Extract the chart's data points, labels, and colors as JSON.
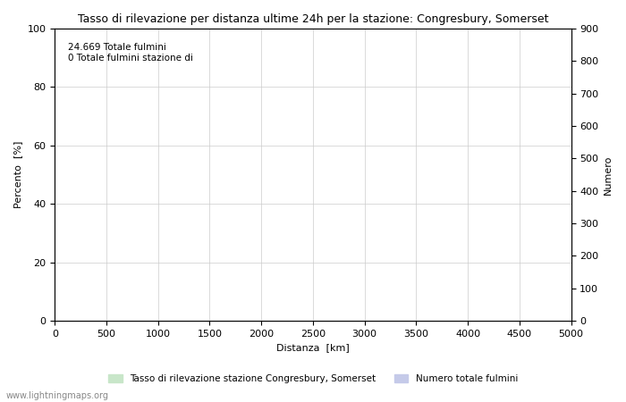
{
  "title": "Tasso di rilevazione per distanza ultime 24h per la stazione: Congresbury, Somerset",
  "xlabel": "Distanza  [km]",
  "ylabel_left": "Percento  [%]",
  "ylabel_right": "Numero",
  "xlim": [
    0,
    5000
  ],
  "ylim_left": [
    0,
    100
  ],
  "ylim_right": [
    0,
    900
  ],
  "xticks": [
    0,
    500,
    1000,
    1500,
    2000,
    2500,
    3000,
    3500,
    4000,
    4500,
    5000
  ],
  "yticks_left": [
    0,
    20,
    40,
    60,
    80,
    100
  ],
  "yticks_right": [
    0,
    100,
    200,
    300,
    400,
    500,
    600,
    700,
    800,
    900
  ],
  "annotation": "24.669 Totale fulmini\n0 Totale fulmini stazione di",
  "legend_label1": "Tasso di rilevazione stazione Congresbury, Somerset",
  "legend_label2": "Numero totale fulmini",
  "fill_color1": "#c8e6c9",
  "fill_color2": "#c5cae9",
  "line_color": "#5c6bc0",
  "watermark": "www.lightningmaps.org",
  "background_color": "#ffffff",
  "grid_color": "#cccccc"
}
